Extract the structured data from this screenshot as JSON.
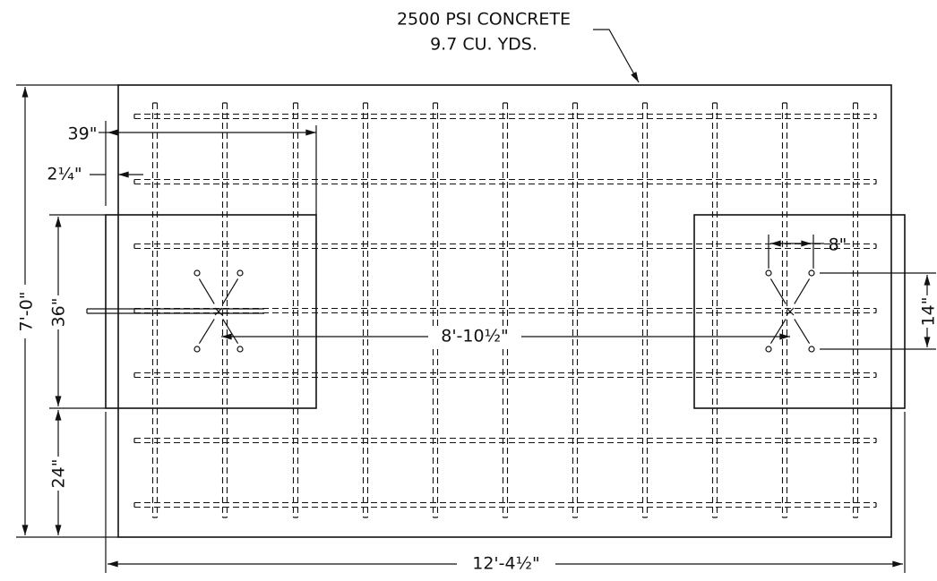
{
  "note": {
    "line1": "2500 PSI CONCRETE",
    "line2": "9.7 CU. YDS."
  },
  "dimensions": {
    "spacing_39": "39\"",
    "edge_2_25": "2¼\"",
    "height_36": "36\"",
    "total_height": "7'-0\"",
    "height_24": "24\"",
    "bolt_8": "8\"",
    "bolt_14": "14\"",
    "bolt_span": "8'-10½\"",
    "total_width": "12'-4½\""
  }
}
